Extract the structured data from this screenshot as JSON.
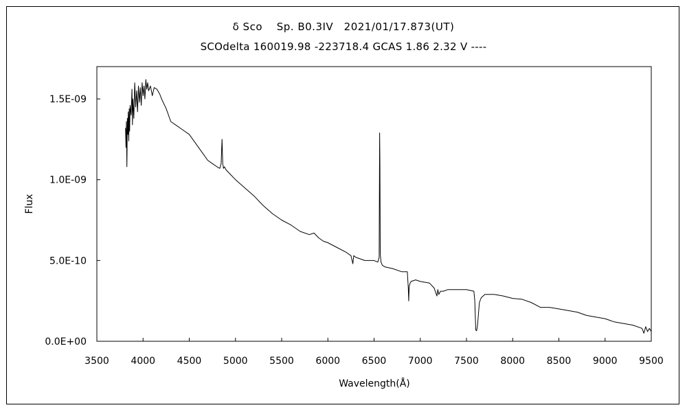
{
  "chart_data": {
    "type": "line",
    "title": "δ Sco　 Sp. B0.3IV　2021/01/17.873(UT)",
    "subtitle": "SCOdelta 160019.98 -223718.4 GCAS 1.86 2.32 V ----",
    "xlabel": "Wavelength(Å)",
    "ylabel": "Flux",
    "xlim": [
      3500,
      9500
    ],
    "ylim": [
      0,
      1.7e-09
    ],
    "xticks": [
      3500,
      4000,
      4500,
      5000,
      5500,
      6000,
      6500,
      7000,
      7500,
      8000,
      8500,
      9000,
      9500
    ],
    "xtick_labels": [
      "3500",
      "4000",
      "4500",
      "5000",
      "5500",
      "6000",
      "6500",
      "7000",
      "7500",
      "8000",
      "8500",
      "9000",
      "9500"
    ],
    "yticks": [
      0,
      5e-10,
      1e-09,
      1.5e-09
    ],
    "ytick_labels": [
      "0.0E+00",
      "5.0E-10",
      "1.0E-09",
      "1.5E-09"
    ],
    "grid": false,
    "line_color": "#000000",
    "series": [
      {
        "x": [
          3810,
          3815,
          3820,
          3825,
          3830,
          3835,
          3840,
          3845,
          3850,
          3855,
          3860,
          3870,
          3880,
          3885,
          3890,
          3900,
          3910,
          3920,
          3930,
          3940,
          3950,
          3960,
          3970,
          3980,
          3990,
          4000,
          4010,
          4020,
          4030,
          4040,
          4050,
          4060,
          4080,
          4100,
          4120,
          4150,
          4180,
          4200,
          4250,
          4300,
          4350,
          4400,
          4450,
          4500,
          4550,
          4600,
          4650,
          4700,
          4750,
          4800,
          4830,
          4845,
          4855,
          4862,
          4870,
          4880,
          4900,
          4950,
          5000,
          5100,
          5200,
          5300,
          5400,
          5500,
          5600,
          5700,
          5800,
          5850,
          5900,
          5950,
          6000,
          6100,
          6200,
          6250,
          6270,
          6280,
          6300,
          6400,
          6500,
          6540,
          6555,
          6560,
          6563,
          6567,
          6575,
          6590,
          6620,
          6700,
          6800,
          6860,
          6870,
          6875,
          6880,
          6890,
          6900,
          6950,
          7000,
          7100,
          7150,
          7180,
          7190,
          7200,
          7220,
          7250,
          7300,
          7400,
          7500,
          7580,
          7590,
          7600,
          7610,
          7620,
          7640,
          7660,
          7700,
          7800,
          7900,
          8000,
          8100,
          8200,
          8300,
          8400,
          8500,
          8600,
          8700,
          8800,
          8900,
          9000,
          9100,
          9200,
          9300,
          9400,
          9420,
          9440,
          9460,
          9480,
          9500
        ],
        "y": [
          1.32e-09,
          1.2e-09,
          1.36e-09,
          1.08e-09,
          1.38e-09,
          1.28e-09,
          1.42e-09,
          1.24e-09,
          1.44e-09,
          1.3e-09,
          1.46e-09,
          1.4e-09,
          1.56e-09,
          1.34e-09,
          1.5e-09,
          1.38e-09,
          1.6e-09,
          1.45e-09,
          1.55e-09,
          1.42e-09,
          1.58e-09,
          1.48e-09,
          1.57e-09,
          1.46e-09,
          1.6e-09,
          1.52e-09,
          1.58e-09,
          1.5e-09,
          1.62e-09,
          1.56e-09,
          1.6e-09,
          1.55e-09,
          1.58e-09,
          1.52e-09,
          1.57e-09,
          1.56e-09,
          1.53e-09,
          1.5e-09,
          1.44e-09,
          1.36e-09,
          1.34e-09,
          1.32e-09,
          1.3e-09,
          1.28e-09,
          1.24e-09,
          1.2e-09,
          1.16e-09,
          1.12e-09,
          1.1e-09,
          1.08e-09,
          1.07e-09,
          1.1e-09,
          1.25e-09,
          1.1e-09,
          1.07e-09,
          1.08e-09,
          1.06e-09,
          1.03e-09,
          1e-09,
          9.5e-10,
          9e-10,
          8.4e-10,
          7.9e-10,
          7.5e-10,
          7.2e-10,
          6.8e-10,
          6.6e-10,
          6.7e-10,
          6.4e-10,
          6.2e-10,
          6.1e-10,
          5.8e-10,
          5.5e-10,
          5.3e-10,
          4.8e-10,
          5.3e-10,
          5.2e-10,
          5e-10,
          5e-10,
          4.9e-10,
          5.2e-10,
          1.29e-09,
          1.1e-09,
          5.4e-10,
          4.9e-10,
          4.7e-10,
          4.6e-10,
          4.5e-10,
          4.3e-10,
          4.3e-10,
          3.3e-10,
          2.5e-10,
          3.4e-10,
          3.6e-10,
          3.7e-10,
          3.8e-10,
          3.7e-10,
          3.6e-10,
          3.3e-10,
          2.8e-10,
          3.2e-10,
          2.9e-10,
          3.1e-10,
          3.1e-10,
          3.2e-10,
          3.2e-10,
          3.2e-10,
          3.1e-10,
          2.5e-10,
          7e-11,
          6.5e-11,
          1e-10,
          2.4e-10,
          2.7e-10,
          2.9e-10,
          2.9e-10,
          2.8e-10,
          2.65e-10,
          2.6e-10,
          2.4e-10,
          2.1e-10,
          2.1e-10,
          2e-10,
          1.9e-10,
          1.8e-10,
          1.6e-10,
          1.5e-10,
          1.4e-10,
          1.2e-10,
          1.1e-10,
          1e-10,
          8e-11,
          5e-11,
          9e-11,
          6e-11,
          8e-11,
          6e-11
        ]
      }
    ]
  }
}
